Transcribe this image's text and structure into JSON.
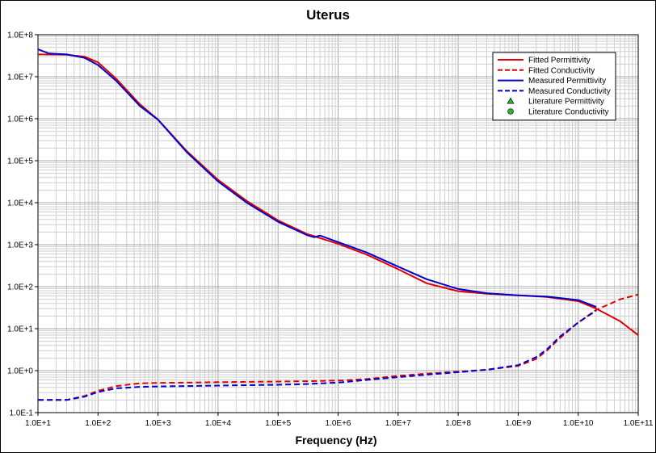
{
  "chart_data": {
    "type": "line",
    "title": "Uterus",
    "xlabel": "Frequency (Hz)",
    "ylabel": "",
    "xscale": "log",
    "yscale": "log",
    "xlim": [
      10,
      100000000000
    ],
    "ylim": [
      0.1,
      100000000
    ],
    "grid": true,
    "legend_position": "top-right",
    "x_tick_labels": [
      "1.0E+1",
      "1.0E+2",
      "1.0E+3",
      "1.0E+4",
      "1.0E+5",
      "1.0E+6",
      "1.0E+7",
      "1.0E+8",
      "1.0E+9",
      "1.0E+10",
      "1.0E+11"
    ],
    "y_tick_labels": [
      "1.0E-1",
      "1.0E+0",
      "1.0E+1",
      "1.0E+2",
      "1.0E+3",
      "1.0E+4",
      "1.0E+5",
      "1.0E+6",
      "1.0E+7",
      "1.0E+8"
    ],
    "series": [
      {
        "name": "Fitted Permittivity",
        "color": "#e00000",
        "style": "solid",
        "x": [
          10,
          30,
          60,
          100,
          200,
          500,
          1000,
          3000,
          10000,
          30000,
          100000,
          300000,
          1000000,
          3000000,
          10000000,
          30000000,
          100000000,
          300000000,
          1000000000,
          3000000000,
          10000000000,
          20000000000,
          50000000000,
          100000000000
        ],
        "y": [
          34000000,
          33500000,
          30000000,
          22000000,
          9000000,
          2200000,
          950000,
          170000,
          35000,
          11000,
          3800,
          1800,
          1050,
          580,
          260,
          120,
          78,
          68,
          62,
          57,
          45,
          30,
          15,
          7
        ]
      },
      {
        "name": "Fitted Conductivity",
        "color": "#e00000",
        "style": "dashed",
        "x": [
          10,
          30,
          60,
          100,
          200,
          500,
          1000,
          3000,
          10000,
          30000,
          100000,
          300000,
          1000000,
          3000000,
          10000000,
          30000000,
          100000000,
          300000000,
          1000000000,
          2000000000,
          3000000000,
          5000000000,
          10000000000,
          20000000000,
          50000000000,
          100000000000
        ],
        "y": [
          0.2,
          0.2,
          0.25,
          0.33,
          0.43,
          0.5,
          0.51,
          0.52,
          0.53,
          0.54,
          0.55,
          0.56,
          0.58,
          0.63,
          0.75,
          0.85,
          0.95,
          1.05,
          1.3,
          1.9,
          3,
          6,
          14,
          28,
          50,
          65
        ]
      },
      {
        "name": "Measured Permittivity",
        "color": "#0000cc",
        "style": "solid",
        "x": [
          10,
          15,
          30,
          60,
          100,
          200,
          500,
          1000,
          3000,
          10000,
          30000,
          100000,
          300000,
          400000,
          500000,
          1000000,
          3000000,
          10000000,
          30000000,
          100000000,
          300000000,
          1000000000,
          3000000000,
          10000000000,
          20000000000
        ],
        "y": [
          45000000,
          36000000,
          34000000,
          28000000,
          19000000,
          8000000,
          2000000,
          950000,
          160000,
          32000,
          10000,
          3500,
          1700,
          1500,
          1650,
          1150,
          650,
          300,
          150,
          88,
          70,
          62,
          58,
          48,
          33
        ]
      },
      {
        "name": "Measured Conductivity",
        "color": "#0000cc",
        "style": "dashed",
        "x": [
          10,
          30,
          60,
          100,
          200,
          500,
          1000,
          3000,
          10000,
          30000,
          100000,
          300000,
          1000000,
          3000000,
          10000000,
          30000000,
          100000000,
          300000000,
          1000000000,
          2000000000,
          3000000000,
          5000000000,
          10000000000,
          20000000000
        ],
        "y": [
          0.2,
          0.2,
          0.24,
          0.31,
          0.38,
          0.41,
          0.42,
          0.43,
          0.44,
          0.45,
          0.46,
          0.48,
          0.52,
          0.6,
          0.7,
          0.8,
          0.92,
          1.05,
          1.35,
          2.1,
          3.2,
          6.5,
          14,
          27
        ]
      }
    ],
    "legend": [
      {
        "label": "Fitted Permittivity",
        "color": "#e00000",
        "marker": "solid-line"
      },
      {
        "label": "Fitted Conductivity",
        "color": "#e00000",
        "marker": "dashed-line"
      },
      {
        "label": "Measured Permittivity",
        "color": "#0000cc",
        "marker": "solid-line"
      },
      {
        "label": "Measured Conductivity",
        "color": "#0000cc",
        "marker": "dashed-line"
      },
      {
        "label": "Literature Permittivity",
        "color": "#2db02d",
        "marker": "triangle"
      },
      {
        "label": "Literature Conductivity",
        "color": "#2db02d",
        "marker": "circle"
      }
    ]
  }
}
